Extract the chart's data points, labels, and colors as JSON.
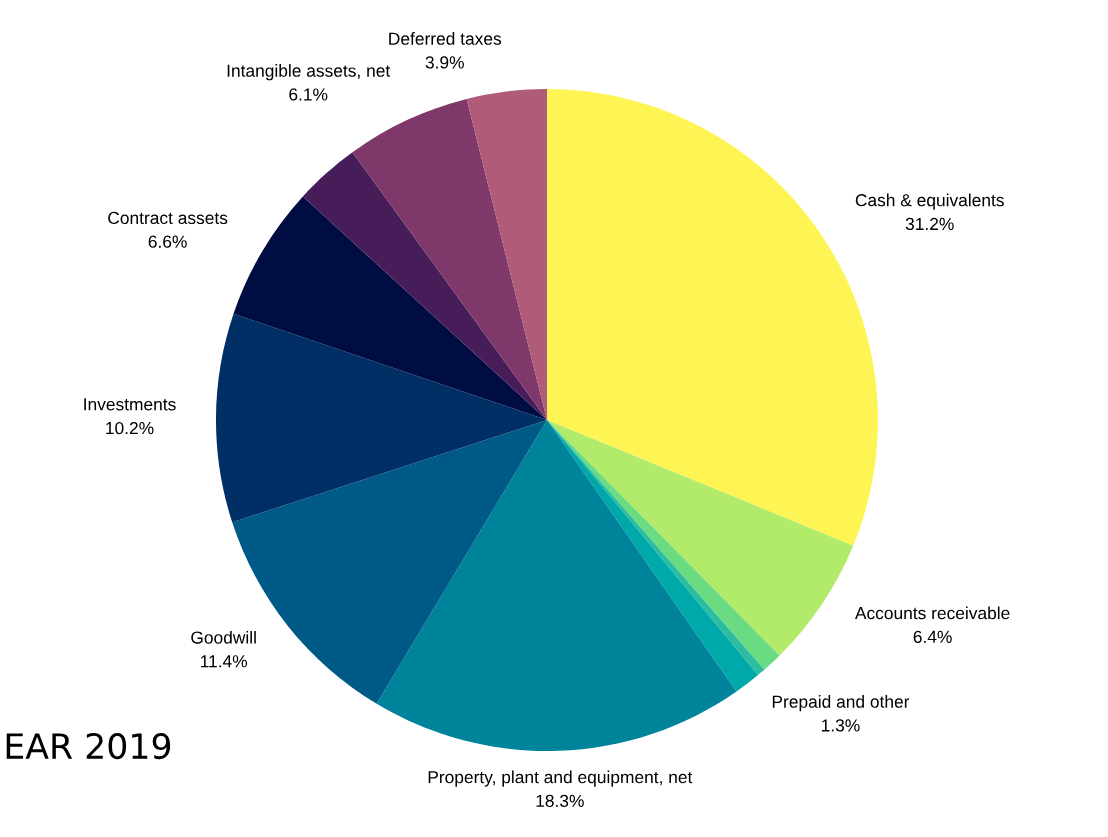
{
  "chart_data": {
    "type": "pie",
    "categories": [
      "Cash & equivalents",
      "Accounts receivable",
      null,
      null,
      "Prepaid and other",
      "Property, plant and equipment, net",
      "Goodwill",
      "Investments",
      "Contract assets",
      null,
      "Intangible assets, net",
      "Deferred taxes"
    ],
    "values": [
      31.2,
      6.4,
      1.0,
      0.4,
      1.3,
      18.3,
      11.4,
      10.2,
      6.6,
      3.2,
      6.1,
      3.9
    ],
    "value_labels": [
      "31.2%",
      "6.4%",
      null,
      null,
      "1.3%",
      "18.3%",
      "11.4%",
      "10.2%",
      "6.6%",
      null,
      "6.1%",
      "3.9%"
    ],
    "colors": [
      "#fef555",
      "#b2ea6a",
      "#6adb80",
      "#2cbca0",
      "#00a9a9",
      "#00849c",
      "#005a87",
      "#002f66",
      "#000d42",
      "#461d58",
      "#7e3869",
      "#b05b78"
    ],
    "annotations": [
      "EAR 2019"
    ]
  }
}
